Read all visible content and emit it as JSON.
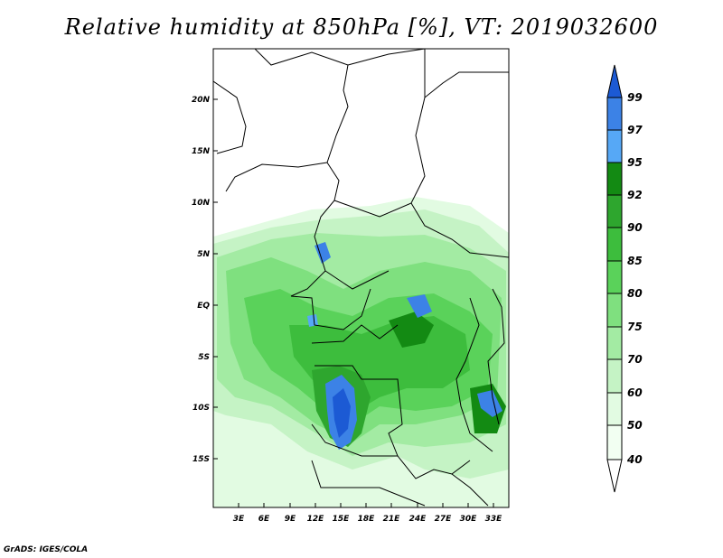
{
  "title": "Relative humidity at 850hPa [%], VT: 2019032600",
  "credit": "GrADS: IGES/COLA",
  "map": {
    "lat_labels": [
      "20N",
      "15N",
      "10N",
      "5N",
      "EQ",
      "5S",
      "10S",
      "15S"
    ],
    "lon_labels": [
      "3E",
      "6E",
      "9E",
      "12E",
      "15E",
      "18E",
      "21E",
      "24E",
      "27E",
      "30E",
      "33E"
    ]
  },
  "colorbar": {
    "labels": [
      "99",
      "97",
      "95",
      "92",
      "90",
      "85",
      "80",
      "75",
      "70",
      "60",
      "50",
      "40"
    ],
    "colors": [
      "#1c5ad4",
      "#3c82e6",
      "#56a8f6",
      "#138a13",
      "#2ea62e",
      "#3dbd3d",
      "#5ad25a",
      "#7fe07f",
      "#a3eba3",
      "#c5f3c5",
      "#e2fbe2",
      "#f2fff2"
    ]
  }
}
